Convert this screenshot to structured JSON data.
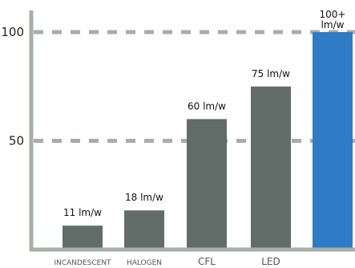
{
  "chart_data": {
    "type": "bar",
    "categories": [
      "INCANDESCENT",
      "HALOGEN",
      "CFL",
      "LED",
      ""
    ],
    "values": [
      11,
      18,
      60,
      75,
      100
    ],
    "data_labels": [
      "11 lm/w",
      "18 lm/w",
      "60 lm/w",
      "75 lm/w",
      "100+\nlm/w"
    ],
    "y_ticks": [
      50,
      100
    ],
    "ylim": [
      0,
      100
    ],
    "grid": "dashed lines at ticks",
    "title": "",
    "xlabel": "",
    "ylabel": "",
    "colors": {
      "bar": "#626d69",
      "highlight": "#2f7bc6",
      "axis": "#a6aea8",
      "grid": "#a6aea8"
    }
  }
}
